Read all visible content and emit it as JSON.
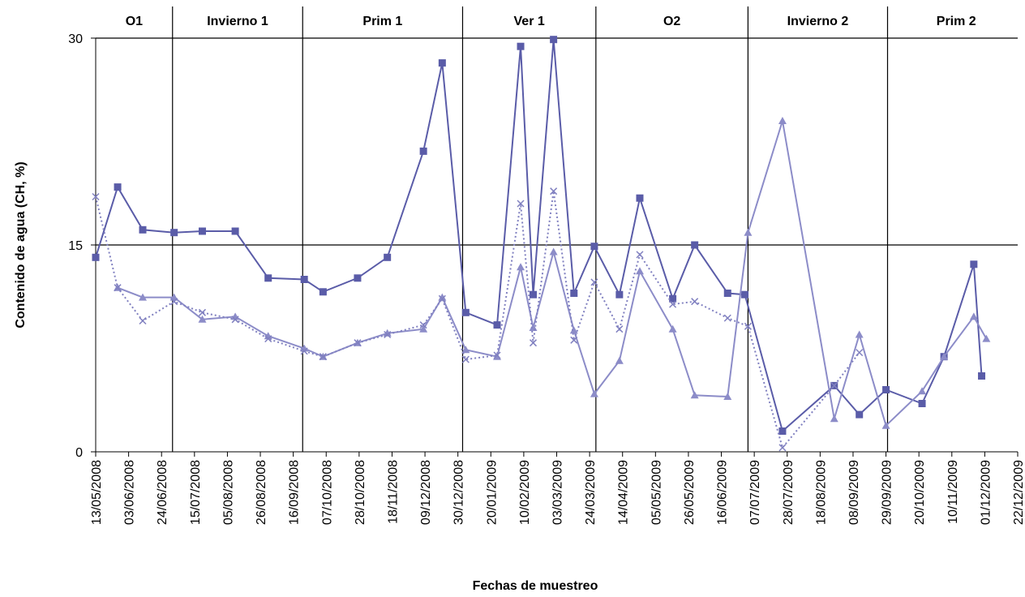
{
  "chart_data": {
    "type": "line",
    "y_label": "Contenido de agua (CH, %)",
    "x_label": "Fechas de muestreo",
    "ylim": [
      0,
      30
    ],
    "yticks": [
      0,
      15,
      30
    ],
    "grid": true,
    "xlim": [
      "2008-05-13",
      "2009-12-22"
    ],
    "xticks": [
      {
        "value": "2008-05-13",
        "label": "13/05/2008"
      },
      {
        "value": "2008-06-03",
        "label": "03/06/2008"
      },
      {
        "value": "2008-06-24",
        "label": "24/06/2008"
      },
      {
        "value": "2008-07-15",
        "label": "15/07/2008"
      },
      {
        "value": "2008-08-05",
        "label": "05/08/2008"
      },
      {
        "value": "2008-08-26",
        "label": "26/08/2008"
      },
      {
        "value": "2008-09-16",
        "label": "16/09/2008"
      },
      {
        "value": "2008-10-07",
        "label": "07/10/2008"
      },
      {
        "value": "2008-10-28",
        "label": "28/10/2008"
      },
      {
        "value": "2008-11-18",
        "label": "18/11/2008"
      },
      {
        "value": "2008-12-09",
        "label": "09/12/2008"
      },
      {
        "value": "2008-12-30",
        "label": "30/12/2008"
      },
      {
        "value": "2009-01-20",
        "label": "20/01/2009"
      },
      {
        "value": "2009-02-10",
        "label": "10/02/2009"
      },
      {
        "value": "2009-03-03",
        "label": "03/03/2009"
      },
      {
        "value": "2009-03-24",
        "label": "24/03/2009"
      },
      {
        "value": "2009-04-14",
        "label": "14/04/2009"
      },
      {
        "value": "2009-05-05",
        "label": "05/05/2009"
      },
      {
        "value": "2009-05-26",
        "label": "26/05/2009"
      },
      {
        "value": "2009-06-16",
        "label": "16/06/2009"
      },
      {
        "value": "2009-07-07",
        "label": "07/07/2009"
      },
      {
        "value": "2009-07-28",
        "label": "28/07/2009"
      },
      {
        "value": "2009-08-18",
        "label": "18/08/2009"
      },
      {
        "value": "2009-09-08",
        "label": "08/09/2009"
      },
      {
        "value": "2009-09-29",
        "label": "29/09/2009"
      },
      {
        "value": "2009-10-20",
        "label": "20/10/2009"
      },
      {
        "value": "2009-11-10",
        "label": "10/11/2009"
      },
      {
        "value": "2009-12-01",
        "label": "01/12/2009"
      },
      {
        "value": "2009-12-22",
        "label": "22/12/2009"
      }
    ],
    "seasons": [
      "O1",
      "Invierno 1",
      "Prim 1",
      "Ver 1",
      "O2",
      "Invierno 2",
      "Prim 2"
    ],
    "season_bounds": [
      "2008-07-01",
      "2008-09-22",
      "2009-01-02",
      "2009-03-28",
      "2009-07-03",
      "2009-09-30"
    ],
    "series": [
      {
        "color": "#5a5ca8",
        "marker": "square",
        "dash": "solid",
        "x": [
          "2008-05-13",
          "2008-05-27",
          "2008-06-12",
          "2008-07-02",
          "2008-07-20",
          "2008-08-10",
          "2008-08-31",
          "2008-09-23",
          "2008-10-05",
          "2008-10-27",
          "2008-11-15",
          "2008-12-08",
          "2008-12-20",
          "2009-01-04",
          "2009-01-24",
          "2009-02-08",
          "2009-02-16",
          "2009-03-01",
          "2009-03-14",
          "2009-03-27",
          "2009-04-12",
          "2009-04-25",
          "2009-05-16",
          "2009-05-30",
          "2009-06-20",
          "2009-07-01",
          "2009-07-25",
          "2009-08-27",
          "2009-09-12",
          "2009-09-29",
          "2009-10-22",
          "2009-11-05",
          "2009-11-24",
          "2009-11-29"
        ],
        "values": [
          14.1,
          19.2,
          16.1,
          15.9,
          16.0,
          16.0,
          12.6,
          12.5,
          11.6,
          12.6,
          14.1,
          21.8,
          28.2,
          10.1,
          9.2,
          29.4,
          11.4,
          29.9,
          11.5,
          14.9,
          11.4,
          18.4,
          11.1,
          15.0,
          11.5,
          11.4,
          1.5,
          4.8,
          2.7,
          4.5,
          3.5,
          6.9,
          13.6,
          5.5
        ]
      },
      {
        "color": "#8c8cc8",
        "marker": "triangle",
        "dash": "solid",
        "x": [
          "2008-05-27",
          "2008-06-12",
          "2008-07-02",
          "2008-07-20",
          "2008-08-10",
          "2008-08-31",
          "2008-09-23",
          "2008-10-05",
          "2008-10-27",
          "2008-11-15",
          "2008-12-08",
          "2008-12-20",
          "2009-01-04",
          "2009-01-24",
          "2009-02-08",
          "2009-02-16",
          "2009-03-01",
          "2009-03-14",
          "2009-03-27",
          "2009-04-12",
          "2009-04-25",
          "2009-05-16",
          "2009-05-30",
          "2009-06-20",
          "2009-07-03",
          "2009-07-25",
          "2009-08-27",
          "2009-09-12",
          "2009-09-29",
          "2009-10-22",
          "2009-11-05",
          "2009-11-24",
          "2009-12-02"
        ],
        "values": [
          11.9,
          11.2,
          11.2,
          9.6,
          9.8,
          8.4,
          7.5,
          6.9,
          7.9,
          8.6,
          8.9,
          11.2,
          7.4,
          6.9,
          13.4,
          9.0,
          14.5,
          8.8,
          4.2,
          6.6,
          13.1,
          8.9,
          4.1,
          4.0,
          15.9,
          24.0,
          2.4,
          8.5,
          1.9,
          4.4,
          6.9,
          9.8,
          8.2
        ]
      },
      {
        "color": "#8080c0",
        "marker": "cross",
        "dash": "dotted",
        "x": [
          "2008-05-13",
          "2008-05-27",
          "2008-06-12",
          "2008-07-02",
          "2008-07-20",
          "2008-08-10",
          "2008-08-31",
          "2008-09-23",
          "2008-10-05",
          "2008-10-27",
          "2008-11-15",
          "2008-12-08",
          "2008-12-20",
          "2009-01-04",
          "2009-01-24",
          "2009-02-08",
          "2009-02-16",
          "2009-03-01",
          "2009-03-14",
          "2009-03-27",
          "2009-04-12",
          "2009-04-25",
          "2009-05-16",
          "2009-05-30",
          "2009-06-20",
          "2009-07-03",
          "2009-07-25",
          "2009-08-27",
          "2009-09-12"
        ],
        "values": [
          18.5,
          11.9,
          9.5,
          10.9,
          10.1,
          9.6,
          8.2,
          7.3,
          6.9,
          7.9,
          8.5,
          9.2,
          11.1,
          6.7,
          7.0,
          18.0,
          7.9,
          18.9,
          8.1,
          12.3,
          8.9,
          14.3,
          10.7,
          10.9,
          9.7,
          9.1,
          0.3,
          4.8,
          7.2
        ]
      }
    ]
  }
}
